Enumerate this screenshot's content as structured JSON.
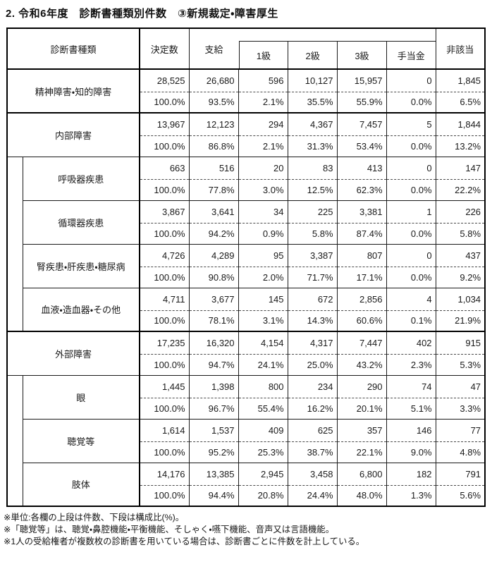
{
  "title": "2. 令和6年度　診断書種類別件数　③新規裁定・障害厚生",
  "table": {
    "headers": {
      "type": "診断書種類",
      "decided": "決定数",
      "paid": "支給",
      "grade1": "1級",
      "grade2": "2級",
      "grade3": "3級",
      "allowance": "手当金",
      "not_applicable": "非該当"
    },
    "rows": [
      {
        "label": "精神障害・知的障害",
        "level": 0,
        "counts": [
          "28,525",
          "26,680",
          "596",
          "10,127",
          "15,957",
          "0",
          "1,845"
        ],
        "pcts": [
          "100.0%",
          "93.5%",
          "2.1%",
          "35.5%",
          "55.9%",
          "0.0%",
          "6.5%"
        ]
      },
      {
        "label": "内部障害",
        "level": 0,
        "counts": [
          "13,967",
          "12,123",
          "294",
          "4,367",
          "7,457",
          "5",
          "1,844"
        ],
        "pcts": [
          "100.0%",
          "86.8%",
          "2.1%",
          "31.3%",
          "53.4%",
          "0.0%",
          "13.2%"
        ]
      },
      {
        "label": "呼吸器疾患",
        "level": 1,
        "counts": [
          "663",
          "516",
          "20",
          "83",
          "413",
          "0",
          "147"
        ],
        "pcts": [
          "100.0%",
          "77.8%",
          "3.0%",
          "12.5%",
          "62.3%",
          "0.0%",
          "22.2%"
        ]
      },
      {
        "label": "循環器疾患",
        "level": 1,
        "counts": [
          "3,867",
          "3,641",
          "34",
          "225",
          "3,381",
          "1",
          "226"
        ],
        "pcts": [
          "100.0%",
          "94.2%",
          "0.9%",
          "5.8%",
          "87.4%",
          "0.0%",
          "5.8%"
        ]
      },
      {
        "label": "腎疾患・肝疾患・糖尿病",
        "level": 1,
        "counts": [
          "4,726",
          "4,289",
          "95",
          "3,387",
          "807",
          "0",
          "437"
        ],
        "pcts": [
          "100.0%",
          "90.8%",
          "2.0%",
          "71.7%",
          "17.1%",
          "0.0%",
          "9.2%"
        ]
      },
      {
        "label": "血液・造血器・その他",
        "level": 1,
        "counts": [
          "4,711",
          "3,677",
          "145",
          "672",
          "2,856",
          "4",
          "1,034"
        ],
        "pcts": [
          "100.0%",
          "78.1%",
          "3.1%",
          "14.3%",
          "60.6%",
          "0.1%",
          "21.9%"
        ]
      },
      {
        "label": "外部障害",
        "level": 0,
        "counts": [
          "17,235",
          "16,320",
          "4,154",
          "4,317",
          "7,447",
          "402",
          "915"
        ],
        "pcts": [
          "100.0%",
          "94.7%",
          "24.1%",
          "25.0%",
          "43.2%",
          "2.3%",
          "5.3%"
        ]
      },
      {
        "label": "眼",
        "level": 1,
        "counts": [
          "1,445",
          "1,398",
          "800",
          "234",
          "290",
          "74",
          "47"
        ],
        "pcts": [
          "100.0%",
          "96.7%",
          "55.4%",
          "16.2%",
          "20.1%",
          "5.1%",
          "3.3%"
        ]
      },
      {
        "label": "聴覚等",
        "level": 1,
        "counts": [
          "1,614",
          "1,537",
          "409",
          "625",
          "357",
          "146",
          "77"
        ],
        "pcts": [
          "100.0%",
          "95.2%",
          "25.3%",
          "38.7%",
          "22.1%",
          "9.0%",
          "4.8%"
        ]
      },
      {
        "label": "肢体",
        "level": 1,
        "counts": [
          "14,176",
          "13,385",
          "2,945",
          "3,458",
          "6,800",
          "182",
          "791"
        ],
        "pcts": [
          "100.0%",
          "94.4%",
          "20.8%",
          "24.4%",
          "48.0%",
          "1.3%",
          "5.6%"
        ]
      }
    ]
  },
  "notes": [
    "※単位:各欄の上段は件数、下段は構成比(%)。",
    "※「聴覚等」は、聴覚・鼻腔機能・平衡機能、そしゃく・嚥下機能、音声又は言語機能。",
    "※1人の受給権者が複数枚の診断書を用いている場合は、診断書ごとに件数を計上している。"
  ]
}
